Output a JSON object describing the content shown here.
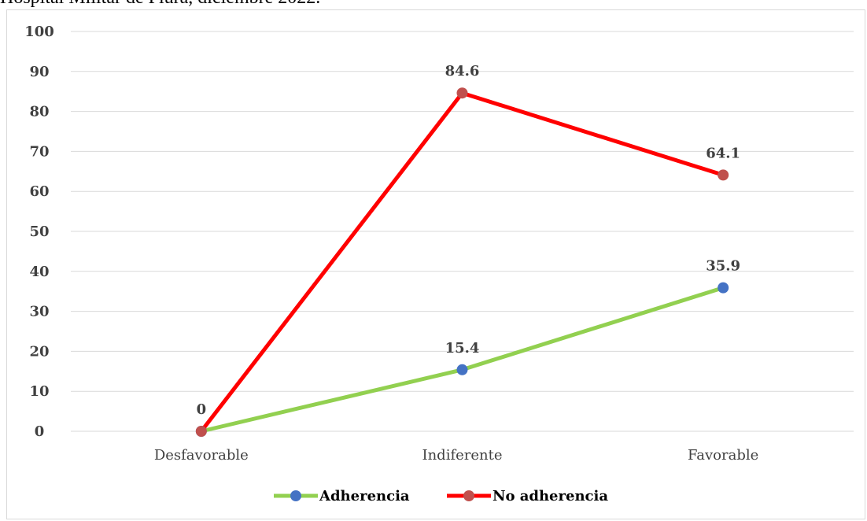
{
  "caption": "Hospital Militar de Piura, diciembre 2022.",
  "colors": {
    "adherencia_line": "#92d050",
    "adherencia_marker": "#4472c4",
    "no_adherencia_line": "#ff0000",
    "no_adherencia_marker": "#c0504d",
    "grid": "#d9d9d9"
  },
  "chart_data": {
    "type": "line",
    "categories": [
      "Desfavorable",
      "Indiferente",
      "Favorable"
    ],
    "series": [
      {
        "name": "Adherencia",
        "values": [
          0,
          15.4,
          35.9
        ],
        "labels": [
          "",
          "15.4",
          "35.9"
        ]
      },
      {
        "name": "No adherencia",
        "values": [
          0,
          84.6,
          64.1
        ],
        "labels": [
          "0",
          "84.6",
          "64.1"
        ]
      }
    ],
    "ylim": [
      0,
      100
    ],
    "yticks": [
      "0",
      "10",
      "20",
      "30",
      "40",
      "50",
      "60",
      "70",
      "80",
      "90",
      "100"
    ],
    "grid": true,
    "legend": "bottom"
  }
}
